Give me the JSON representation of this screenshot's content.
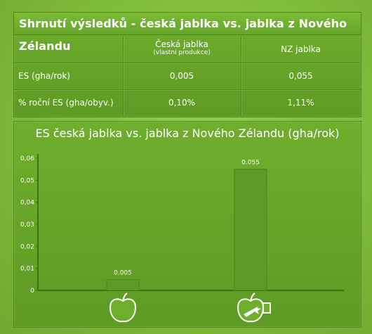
{
  "table": {
    "title": "Shrnutí výsledků - česká jablka vs. jablka z Nového Zélandu",
    "columns": [
      {
        "label": "",
        "sub": ""
      },
      {
        "label": "Česká jablka",
        "sub": "(vlastní produkce)"
      },
      {
        "label": "NZ jablka",
        "sub": ""
      }
    ],
    "rows": [
      {
        "label": "ES (gha/rok)",
        "czech": "0,005",
        "nz": "0,055"
      },
      {
        "label": "% roční ES (gha/obyv.)",
        "czech": "0,10%",
        "nz": "1,11%"
      }
    ]
  },
  "chart_data": {
    "type": "bar",
    "title": "ES česká jablka vs. jablka z Nového Zélandu (gha/rok)",
    "categories": [
      "česká jablka",
      "jablka z Nového Zélandu"
    ],
    "category_icons": [
      "apple-icon",
      "apple-with-plane-icon"
    ],
    "values": [
      0.005,
      0.055
    ],
    "value_labels": [
      "0.005",
      "0.055"
    ],
    "ylim": [
      0,
      0.06
    ],
    "yticks": [
      0,
      0.01,
      0.02,
      0.03,
      0.04,
      0.05,
      0.06
    ],
    "ytick_labels": [
      "0",
      "0,01",
      "0,02",
      "0,03",
      "0,04",
      "0,05",
      "0,06"
    ],
    "grid": false,
    "colors": {
      "bar": "#5c9a28",
      "bar_bg": "#4f8c1e",
      "axis": "#3f7316",
      "text": "#ffffff"
    }
  }
}
